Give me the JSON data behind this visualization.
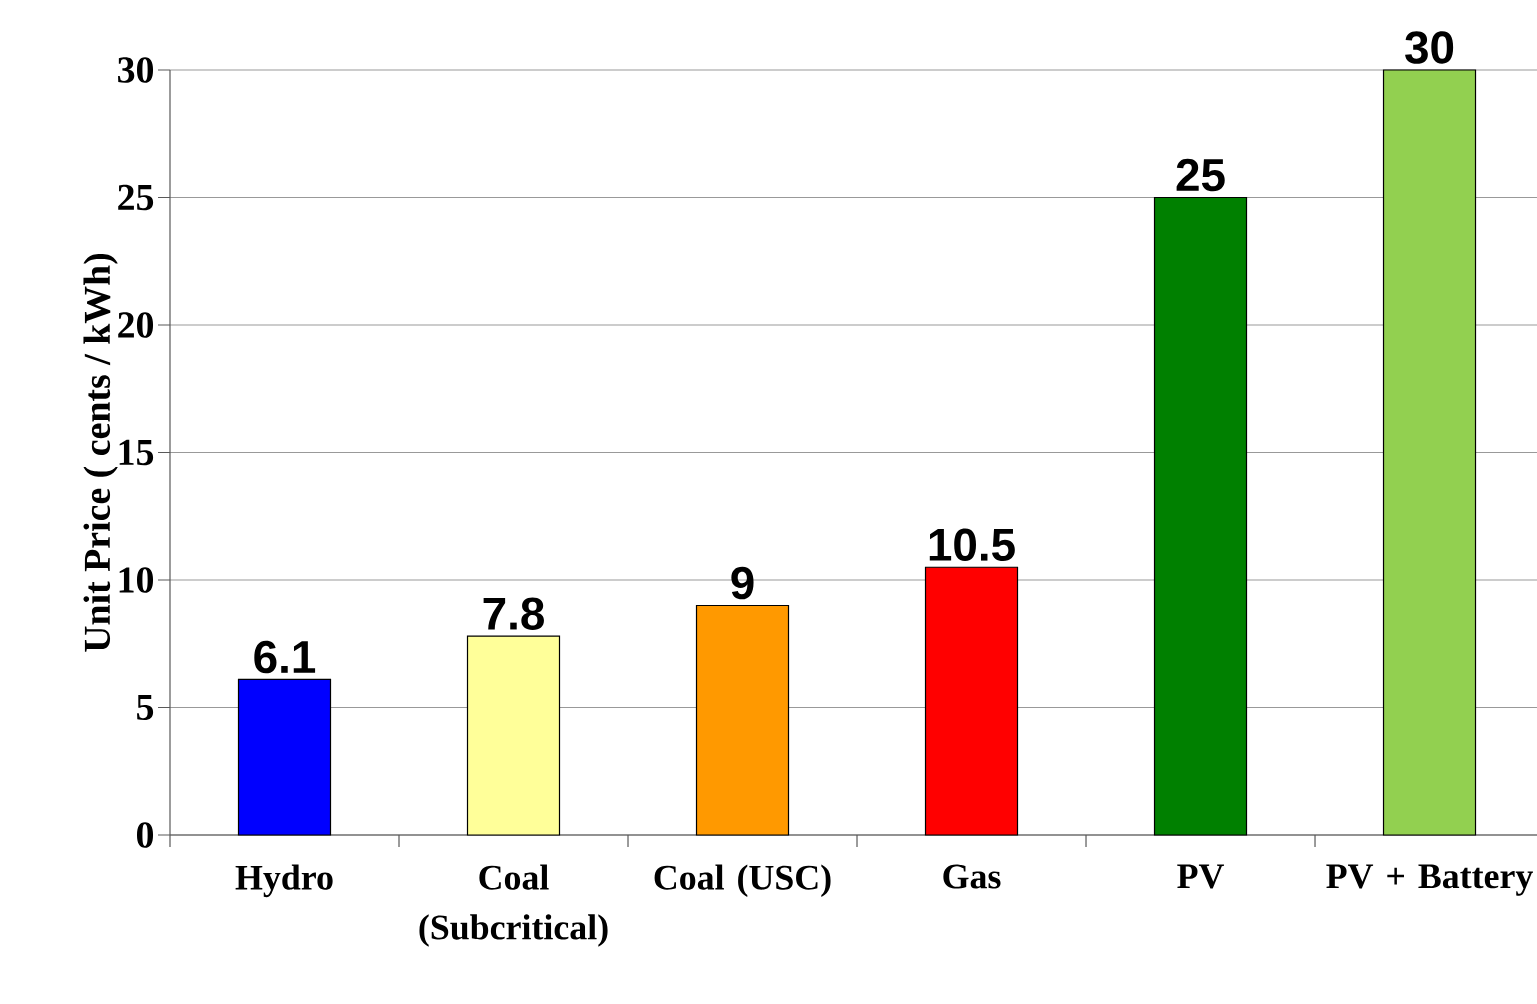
{
  "chart_data": {
    "type": "bar",
    "ylabel": "Unit  Price ( cents / kWh)",
    "categories": [
      "Hydro",
      "Coal (Subcritical)",
      "Coal (USC)",
      "Gas",
      "PV",
      "PV + Battery"
    ],
    "values": [
      6.1,
      7.8,
      9,
      10.5,
      25,
      30
    ],
    "colors": [
      "#0000ff",
      "#ffff99",
      "#ff9900",
      "#ff0000",
      "#008000",
      "#92d050"
    ],
    "ylim": [
      0,
      30
    ],
    "yticks": [
      0,
      5,
      10,
      15,
      20,
      25,
      30
    ],
    "grid": "y",
    "data_labels": true
  }
}
